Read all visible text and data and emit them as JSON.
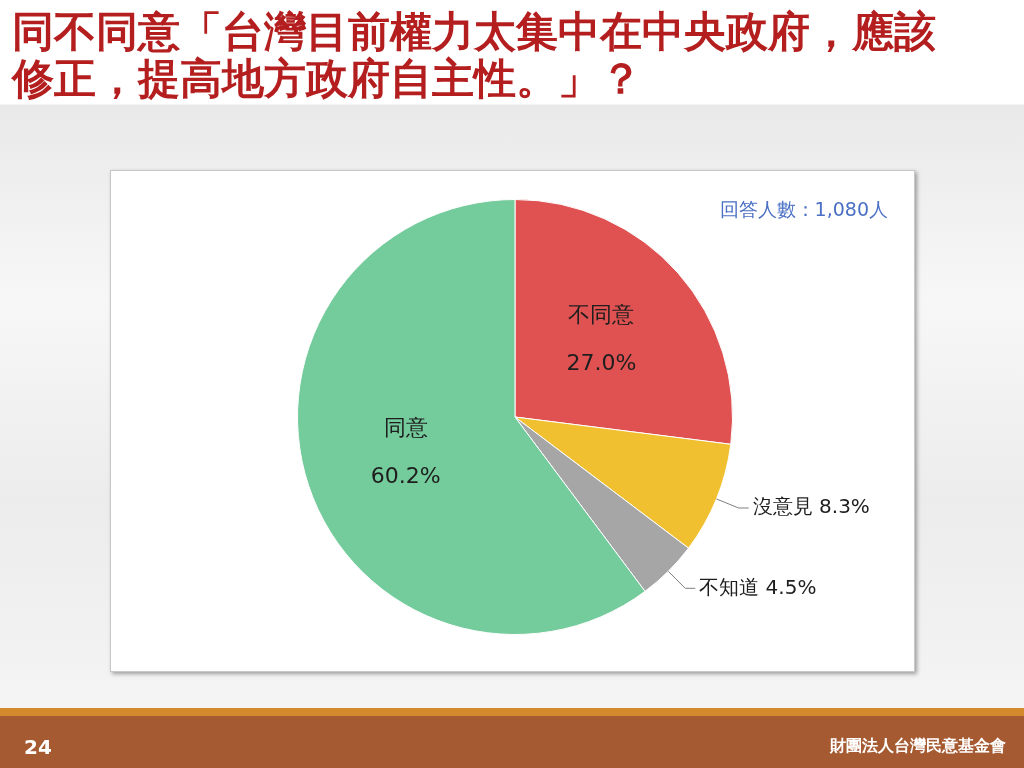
{
  "chart_data": {
    "type": "pie",
    "title": "同不同意「台灣目前權力太集中在中央政府，應該修正，提高地方政府自主性。」？",
    "categories": [
      "不同意",
      "沒意見",
      "不知道",
      "同意"
    ],
    "values": [
      27.0,
      8.3,
      4.5,
      60.2
    ],
    "colors": [
      "#e05252",
      "#f0c030",
      "#a6a6a6",
      "#74cb9b"
    ],
    "value_labels": [
      "27.0%",
      "8.3%",
      "4.5%",
      "60.2%"
    ],
    "annotations": [
      "回答人數：1,080人",
      "24",
      "財團法人台灣民意基金會"
    ],
    "legend": false
  }
}
